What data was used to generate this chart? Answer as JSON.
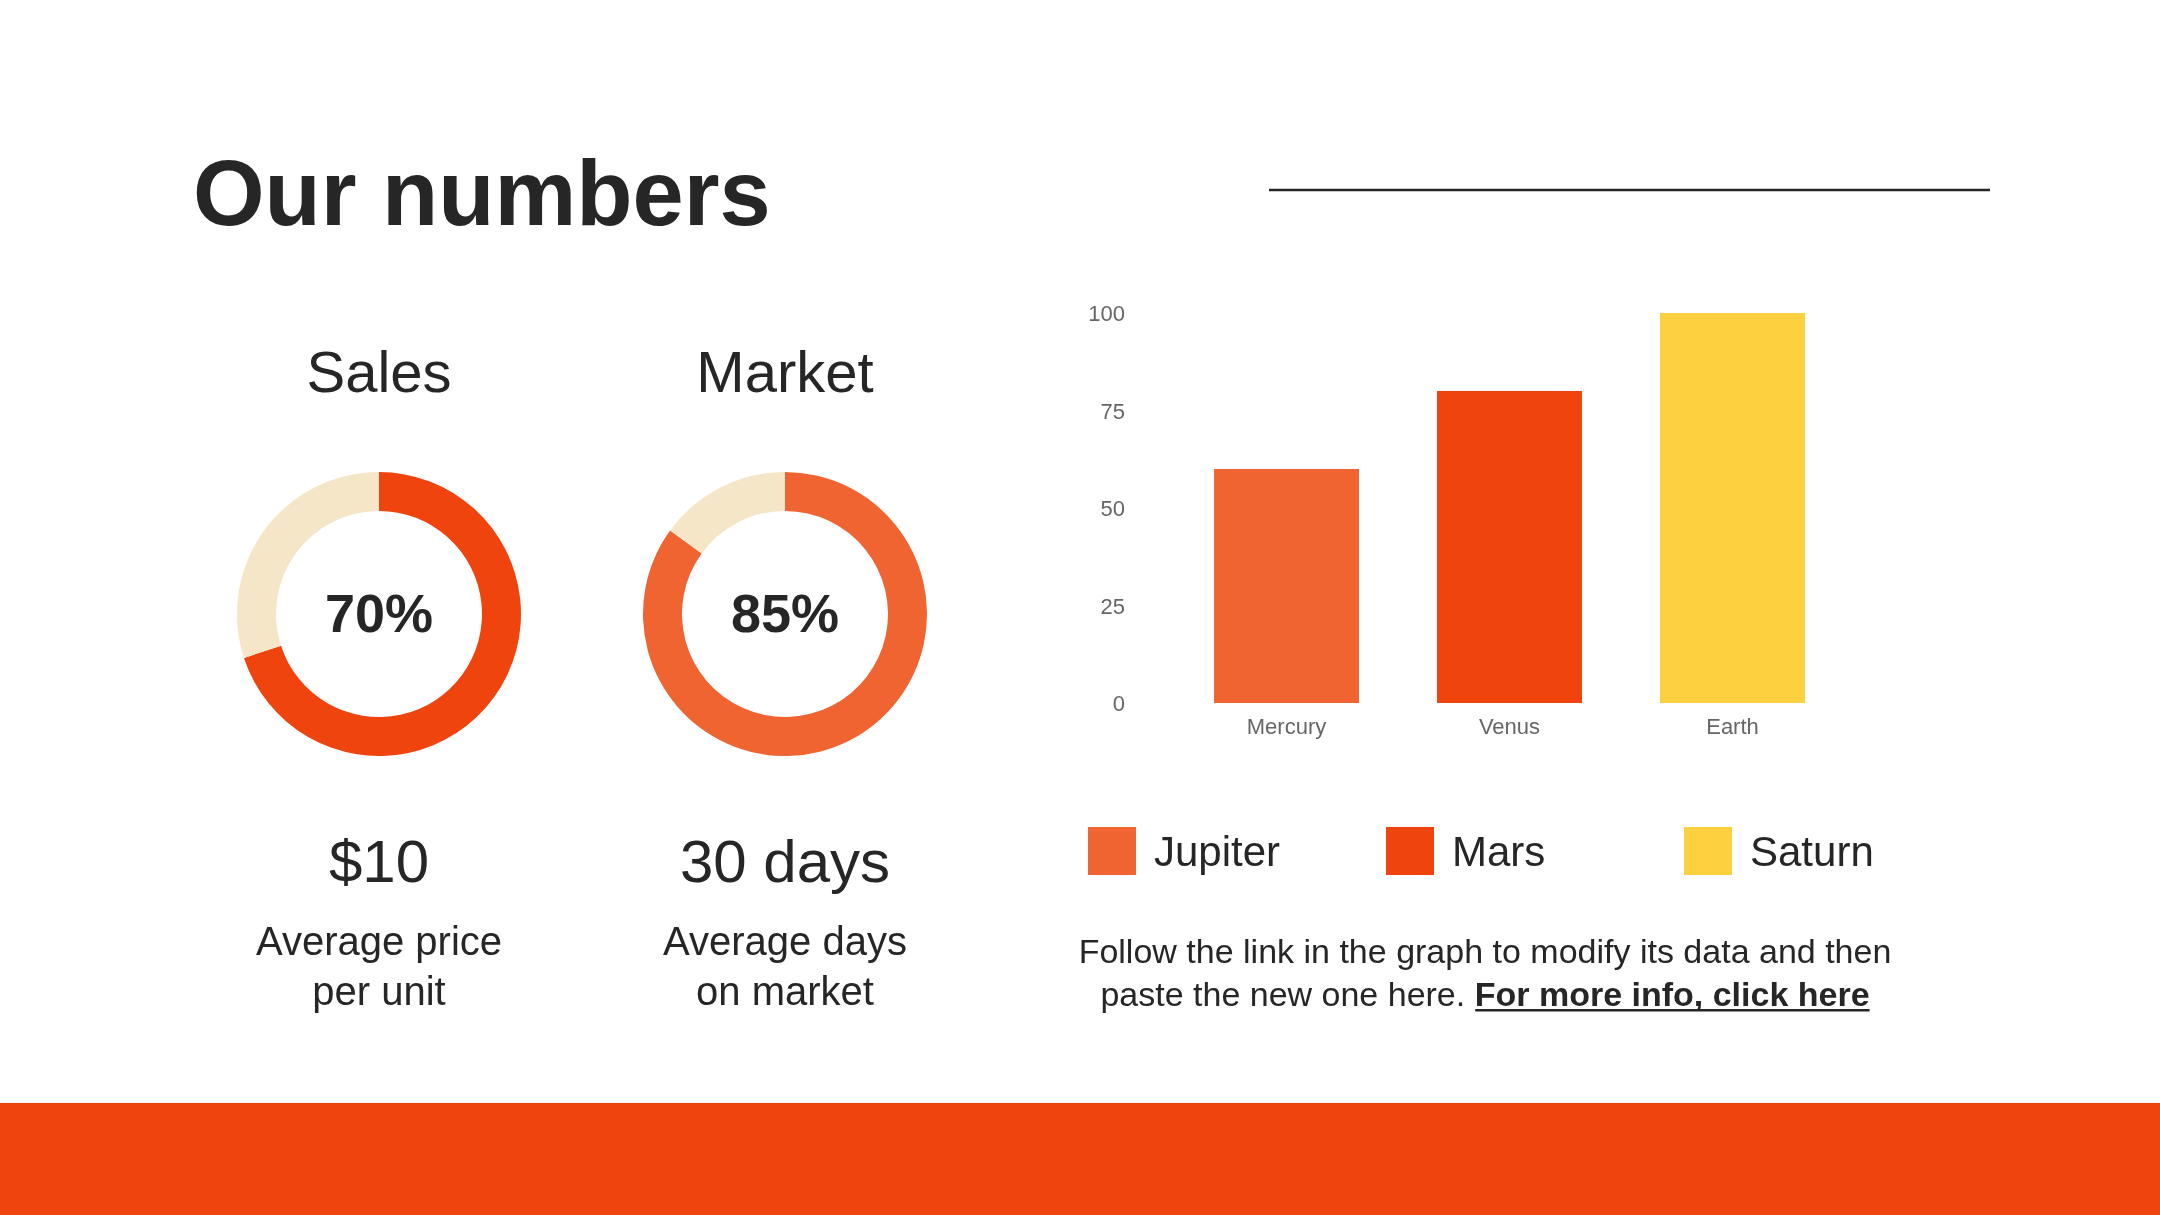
{
  "chart_data": [
    {
      "type": "other",
      "title": "Our numbers"
    },
    {
      "type": "donut",
      "title": "Sales",
      "categories": [
        null,
        null
      ],
      "values": [
        70,
        30
      ],
      "colors": [
        "#f0440f",
        "#f5e6c8"
      ],
      "value_labels": [
        "70%",
        null
      ],
      "subtitle": "$10",
      "annotations": [
        "Average price per unit"
      ]
    },
    {
      "type": "donut",
      "title": "Market",
      "categories": [
        null,
        null
      ],
      "values": [
        85,
        15
      ],
      "colors": [
        "#f06431",
        "#f5e6c8"
      ],
      "value_labels": [
        "85%",
        null
      ],
      "subtitle": "30 days",
      "annotations": [
        "Average days on market"
      ]
    },
    {
      "type": "bar",
      "categories": [
        "Mercury",
        "Venus",
        "Earth"
      ],
      "series": [
        {
          "name": "Jupiter",
          "color": "#f06431",
          "values": [
            60,
            null,
            null
          ]
        },
        {
          "name": "Mars",
          "color": "#f0440f",
          "values": [
            null,
            80,
            null
          ]
        },
        {
          "name": "Saturn",
          "color": "#fdd03f",
          "values": [
            null,
            null,
            100
          ]
        }
      ],
      "ylim": [
        0,
        100
      ],
      "yticks": [
        0,
        25,
        50,
        75,
        100
      ],
      "grid": false,
      "legend": "bottom",
      "annotations": [
        "Follow the link in the graph to modify its data and then paste the new one here.",
        "For more info, click here"
      ]
    }
  ]
}
